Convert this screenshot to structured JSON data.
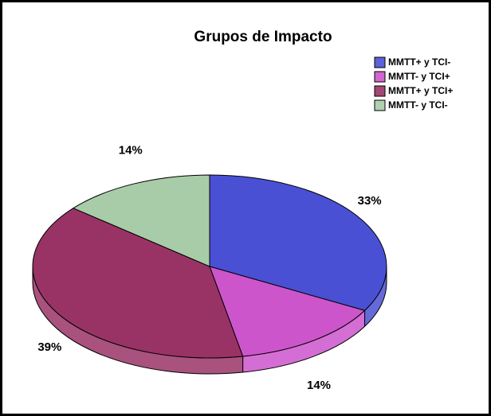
{
  "chart_data": {
    "type": "pie",
    "title": "Grupos de Impacto",
    "categories": [
      "MMTT+ y TCI-",
      "MMTT- y TCI+",
      "MMTT+ y TCI+",
      "MMTT- y TCI-"
    ],
    "values": [
      33,
      14,
      39,
      14
    ],
    "value_labels": [
      "33%",
      "14%",
      "39%",
      "14%"
    ],
    "colors": [
      "#4a50d4",
      "#cc55cc",
      "#993366",
      "#a8ccA8"
    ],
    "legend": "top-right"
  }
}
